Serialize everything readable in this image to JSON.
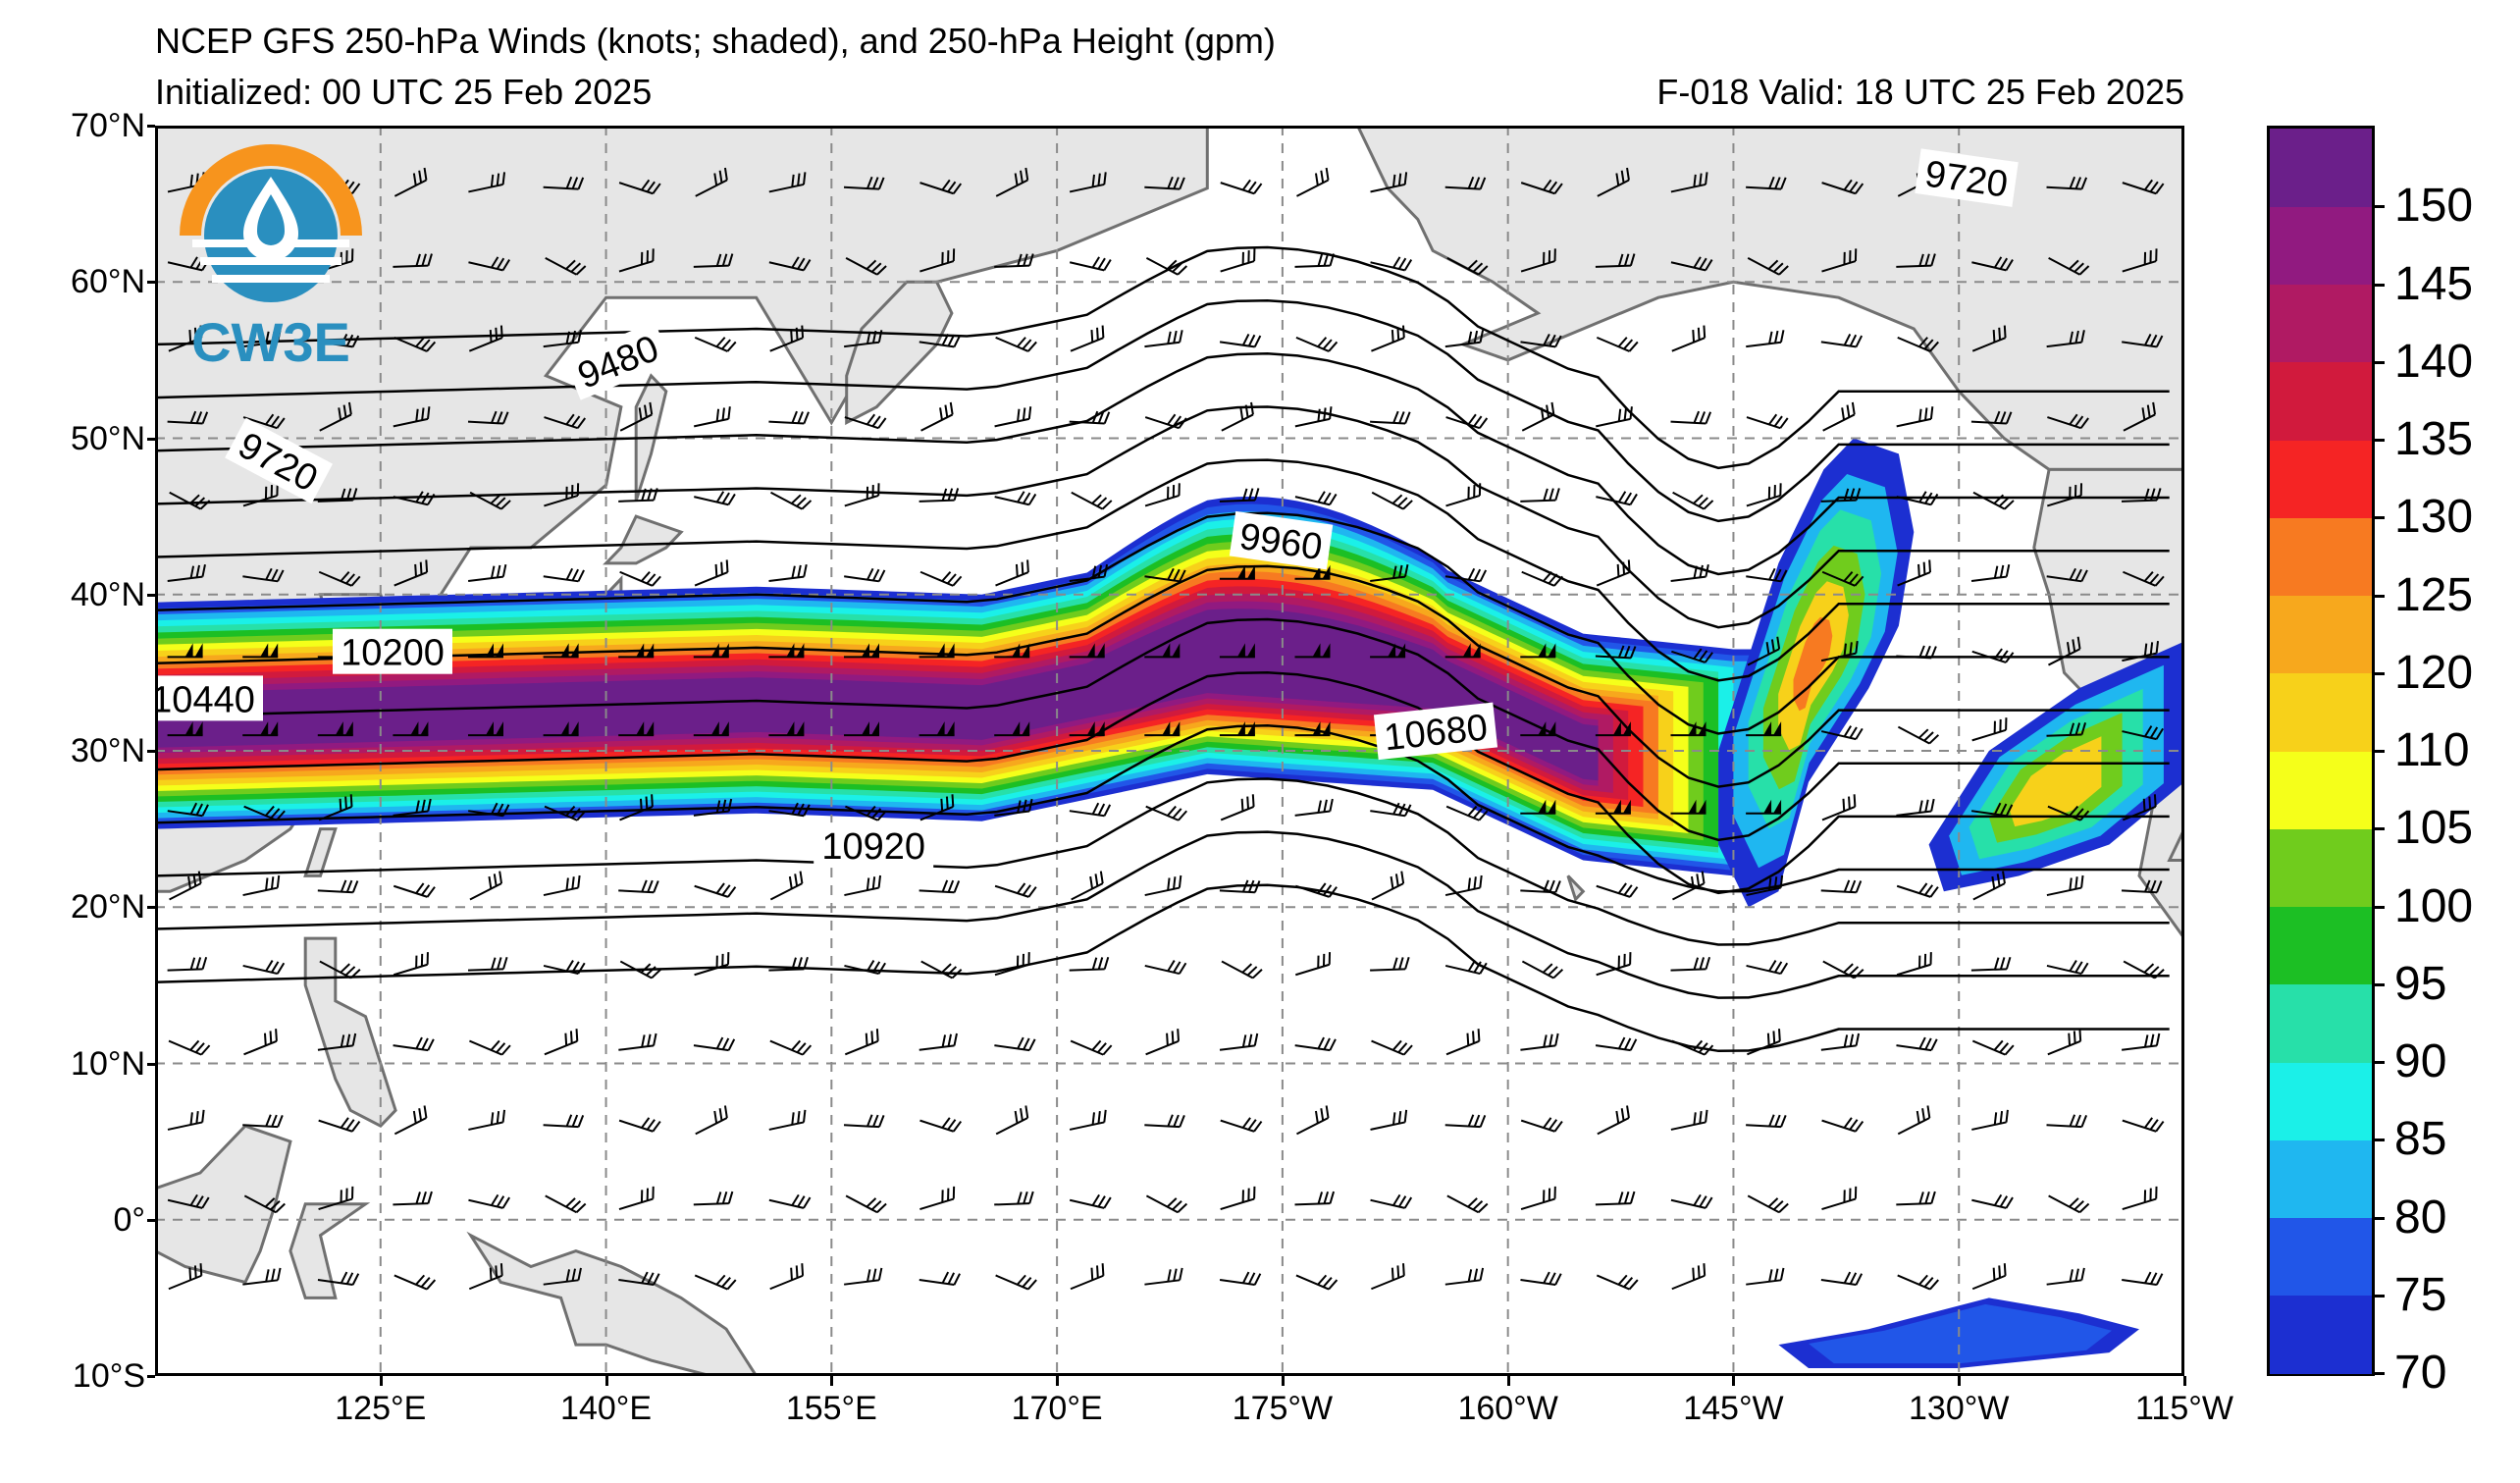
{
  "title": {
    "line1": "NCEP GFS 250-hPa Winds (knots; shaded), and 250-hPa Height (gpm)",
    "line2_left": "Initialized: 00 UTC 25 Feb 2025",
    "line2_right": "F-018  Valid: 18 UTC 25 Feb 2025"
  },
  "logo": {
    "text": "CW3E",
    "icon": "water-drop-logo-icon",
    "colors": {
      "orange": "#f7941d",
      "blue": "#2a8fbf"
    }
  },
  "map": {
    "projection": "equirectangular",
    "lon_range_east": [
      110,
      245
    ],
    "lat_range": [
      -10,
      70
    ],
    "land_color": "#e6e6e6",
    "coast_color": "#707070",
    "grid_color": "#8a8a8a",
    "lat_labels": [
      "70°N",
      "60°N",
      "50°N",
      "40°N",
      "30°N",
      "20°N",
      "10°N",
      "0°",
      "10°S"
    ],
    "lat_values": [
      70,
      60,
      50,
      40,
      30,
      20,
      10,
      0,
      -10
    ],
    "lon_labels": [
      "125°E",
      "140°E",
      "155°E",
      "170°E",
      "175°W",
      "160°W",
      "145°W",
      "130°W",
      "115°W"
    ],
    "lon_values_east": [
      125,
      140,
      155,
      170,
      185,
      200,
      215,
      230,
      245
    ]
  },
  "height_contours": {
    "units": "gpm",
    "labels": [
      {
        "text": "9720",
        "lon": 230.5,
        "lat": 66.6,
        "angle": 8
      },
      {
        "text": "9480",
        "lon": 140.8,
        "lat": 54.9,
        "angle": -22
      },
      {
        "text": "9720",
        "lon": 118.2,
        "lat": 48.5,
        "angle": 28
      },
      {
        "text": "10200",
        "lon": 125.8,
        "lat": 36.3,
        "angle": 0
      },
      {
        "text": "10440",
        "lon": 113.2,
        "lat": 33.3,
        "angle": 0
      },
      {
        "text": "9960",
        "lon": 184.9,
        "lat": 43.4,
        "angle": 8
      },
      {
        "text": "10680",
        "lon": 195.2,
        "lat": 31.2,
        "angle": -6
      },
      {
        "text": "10920",
        "lon": 157.8,
        "lat": 23.9,
        "angle": 0
      }
    ]
  },
  "wind_shading": {
    "units": "knots",
    "jet_core_axis": [
      {
        "lon": 110,
        "lat": 32
      },
      {
        "lon": 130,
        "lat": 32.5
      },
      {
        "lon": 150,
        "lat": 33
      },
      {
        "lon": 165,
        "lat": 32.5
      },
      {
        "lon": 180,
        "lat": 35.5
      },
      {
        "lon": 195,
        "lat": 34.5
      },
      {
        "lon": 205,
        "lat": 30
      },
      {
        "lon": 215,
        "lat": 29
      }
    ]
  },
  "colorbar": {
    "levels": [
      70,
      75,
      80,
      85,
      90,
      95,
      100,
      105,
      110,
      120,
      125,
      130,
      135,
      140,
      145,
      150
    ],
    "colors": [
      "#1c2fd1",
      "#2156e8",
      "#1fb7f0",
      "#1bf0e8",
      "#27e0a9",
      "#1cbf24",
      "#70cc1d",
      "#f5ff1a",
      "#f7d11a",
      "#f7a81d",
      "#f77a21",
      "#f52424",
      "#d11a3d",
      "#b01a63",
      "#911a80",
      "#6b1f8a"
    ],
    "labels": [
      "70",
      "75",
      "80",
      "85",
      "90",
      "95",
      "100",
      "105",
      "110",
      "120",
      "125",
      "130",
      "135",
      "140",
      "145",
      "150"
    ]
  }
}
